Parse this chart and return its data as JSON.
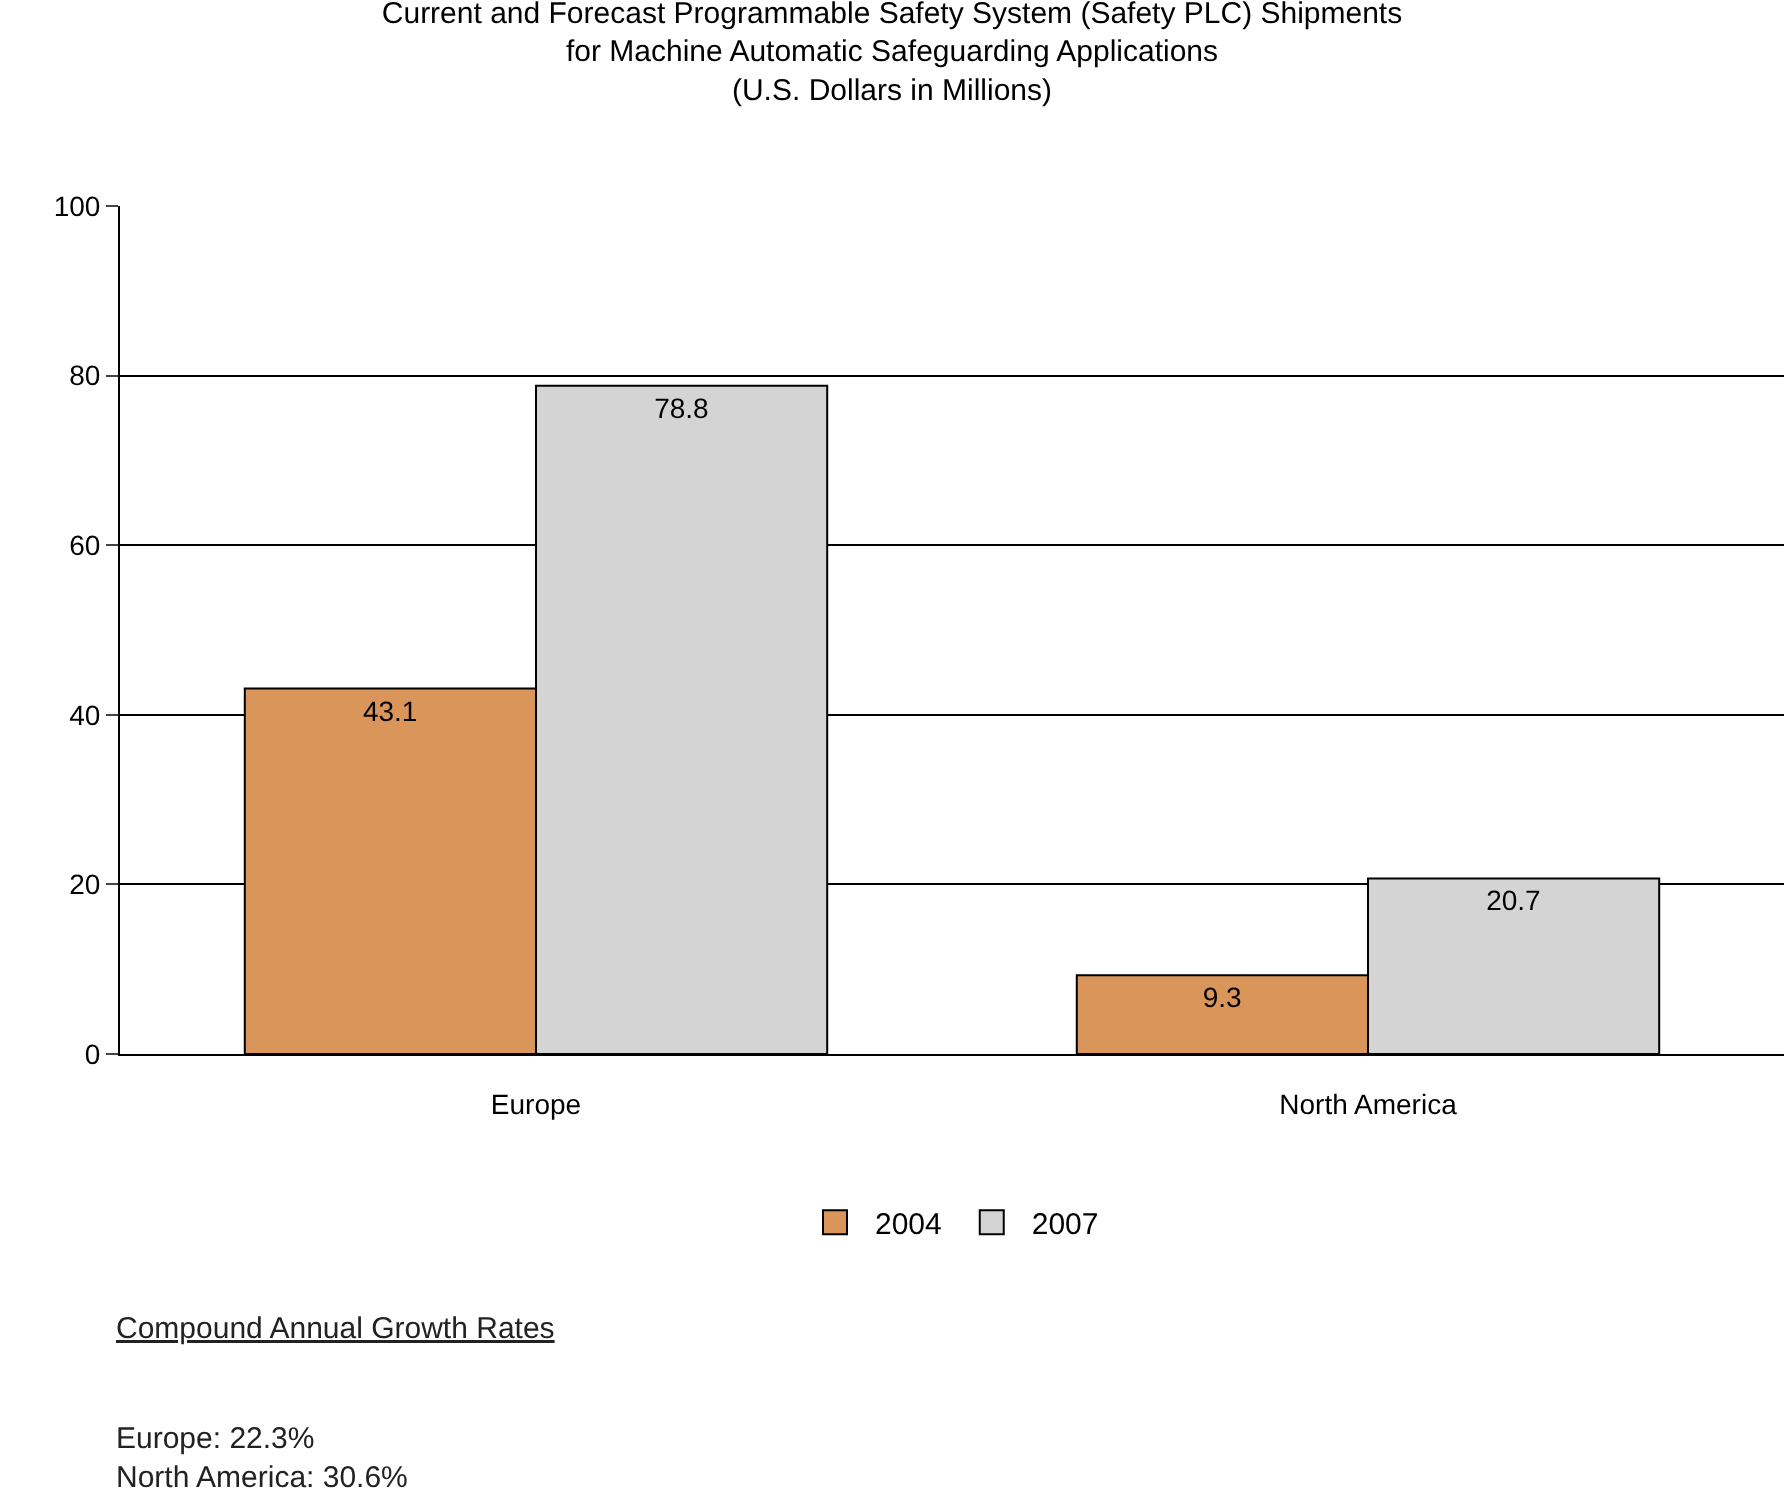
{
  "chart_data": {
    "type": "bar",
    "title": "Current and Forecast Programmable Safety System (Safety PLC) Shipments\nfor Machine Automatic Safeguarding Applications\n(U.S. Dollars in Millions)",
    "categories": [
      "Europe",
      "North America"
    ],
    "series": [
      {
        "name": "2004",
        "color": "#d9955a",
        "values": [
          43.1,
          9.3
        ]
      },
      {
        "name": "2007",
        "color": "#d4d4d4",
        "values": [
          78.8,
          20.7
        ]
      }
    ],
    "ylim": [
      0,
      100
    ],
    "yticks": [
      0,
      20,
      40,
      60,
      80,
      100
    ],
    "grid": "y",
    "legend": "bottom",
    "data_labels": true,
    "annotations": [
      "Compound Annual Growth Rates",
      "Europe: 22.3%\nNorth America: 30.6%"
    ]
  }
}
